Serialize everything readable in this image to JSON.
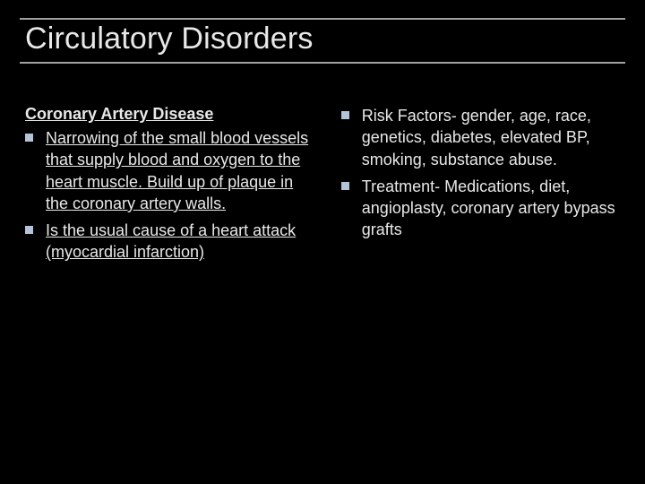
{
  "slide": {
    "title": "Circulatory Disorders",
    "background_color": "#000000",
    "text_color": "#e8e8e8",
    "rule_color": "#a0a0a0",
    "bullet_color": "#b5c3d9",
    "left": {
      "heading": "Coronary Artery Disease",
      "items": [
        "Narrowing of the small blood vessels that supply blood and oxygen to the heart muscle. Build up of plaque in the coronary artery walls.",
        "Is the usual cause of a heart attack (myocardial infarction)"
      ]
    },
    "right": {
      "items": [
        "Risk Factors- gender, age, race, genetics, diabetes, elevated BP, smoking, substance abuse.",
        "Treatment- Medications, diet, angioplasty, coronary artery bypass grafts"
      ]
    }
  }
}
